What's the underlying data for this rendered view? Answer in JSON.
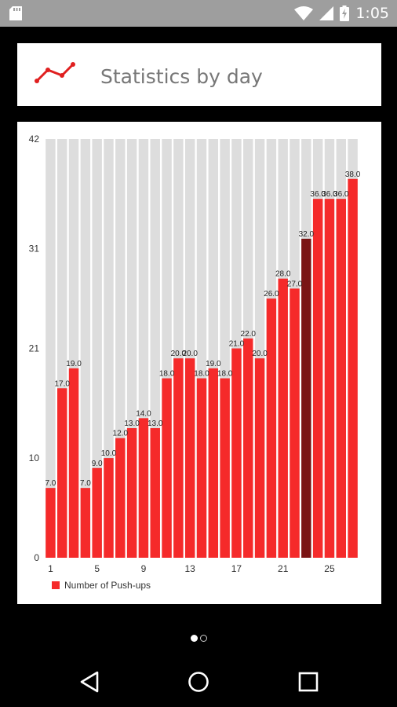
{
  "status_bar": {
    "time": "1:05"
  },
  "header": {
    "title": "Statistics by day"
  },
  "chart_data": {
    "type": "bar",
    "x": [
      1,
      2,
      3,
      4,
      5,
      6,
      7,
      8,
      9,
      10,
      11,
      12,
      13,
      14,
      15,
      16,
      17,
      18,
      19,
      20,
      21,
      22,
      23,
      24,
      25,
      26,
      27
    ],
    "values": [
      7,
      17,
      19,
      7,
      9,
      10,
      12,
      13,
      14,
      13,
      18,
      20,
      20,
      18,
      19,
      18,
      21,
      22,
      20,
      26,
      28,
      27,
      32,
      36,
      36,
      36,
      38
    ],
    "value_labels": [
      "7.0",
      "17.0",
      "19.0",
      "7.0",
      "9.0",
      "10.0",
      "12.0",
      "13.0",
      "14.0",
      "13.0",
      "18.0",
      "20.0",
      "20.0",
      "18.0",
      "19.0",
      "18.0",
      "21.0",
      "22.0",
      "20.0",
      "26.0",
      "28.0",
      "27.0",
      "32.0",
      "36.0",
      "36.0",
      "36.0",
      "38.0"
    ],
    "highlight_index": 22,
    "x_ticks": [
      "1",
      "5",
      "9",
      "13",
      "17",
      "21",
      "25"
    ],
    "y_ticks": [
      "0",
      "10",
      "21",
      "31",
      "42"
    ],
    "ylim": [
      0,
      42
    ],
    "legend": "Number of Push-ups",
    "legend_position": "bottom-left",
    "colors": {
      "bar": "#f52a2a",
      "highlight": "#7a1414",
      "background_bar": "#dddddd"
    }
  }
}
